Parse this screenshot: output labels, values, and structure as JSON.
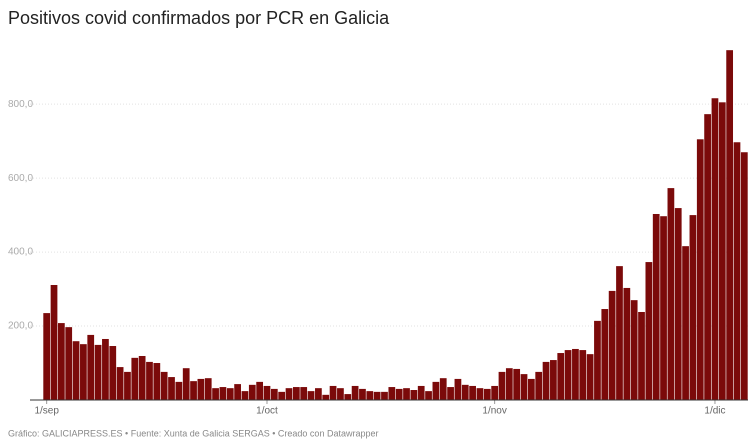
{
  "chart_data": {
    "type": "bar",
    "title": "Positivos covid confirmados por PCR en Galicia",
    "source": "Gráfico: GALICIAPRESS.ES • Fuente: Xunta de Galicia SERGAS • Creado con Datawrapper",
    "color": "#7b0a0a",
    "grid": true,
    "ylim": [
      0,
      960
    ],
    "yticks": [
      {
        "value": 200,
        "label": "200,0"
      },
      {
        "value": 400,
        "label": "400,0"
      },
      {
        "value": 600,
        "label": "600,0"
      },
      {
        "value": 800,
        "label": "800,0"
      }
    ],
    "categories": [
      "1/sep",
      null,
      null,
      null,
      null,
      null,
      null,
      null,
      null,
      null,
      null,
      null,
      null,
      null,
      null,
      null,
      null,
      null,
      null,
      null,
      null,
      null,
      null,
      null,
      null,
      null,
      null,
      null,
      null,
      null,
      "1/oct",
      null,
      null,
      null,
      null,
      null,
      null,
      null,
      null,
      null,
      null,
      null,
      null,
      null,
      null,
      null,
      null,
      null,
      null,
      null,
      null,
      null,
      null,
      null,
      null,
      null,
      null,
      null,
      null,
      null,
      null,
      "1/nov",
      null,
      null,
      null,
      null,
      null,
      null,
      null,
      null,
      null,
      null,
      null,
      null,
      null,
      null,
      null,
      null,
      null,
      null,
      null,
      null,
      null,
      null,
      null,
      null,
      null,
      null,
      null,
      null,
      null,
      "1/dic",
      null,
      null,
      null,
      null
    ],
    "values": [
      235,
      311,
      208,
      197,
      159,
      151,
      176,
      149,
      165,
      146,
      89,
      76,
      114,
      119,
      103,
      100,
      76,
      62,
      49,
      86,
      51,
      57,
      59,
      32,
      35,
      32,
      43,
      24,
      41,
      49,
      38,
      30,
      22,
      32,
      35,
      35,
      24,
      32,
      14,
      38,
      32,
      16,
      38,
      30,
      24,
      22,
      22,
      35,
      30,
      32,
      27,
      38,
      24,
      49,
      59,
      35,
      57,
      41,
      38,
      32,
      30,
      38,
      76,
      86,
      84,
      70,
      57,
      76,
      103,
      108,
      127,
      135,
      138,
      135,
      124,
      214,
      246,
      295,
      362,
      303,
      270,
      238,
      373,
      503,
      497,
      573,
      519,
      416,
      500,
      705,
      773,
      816,
      805,
      946,
      697,
      670
    ]
  }
}
